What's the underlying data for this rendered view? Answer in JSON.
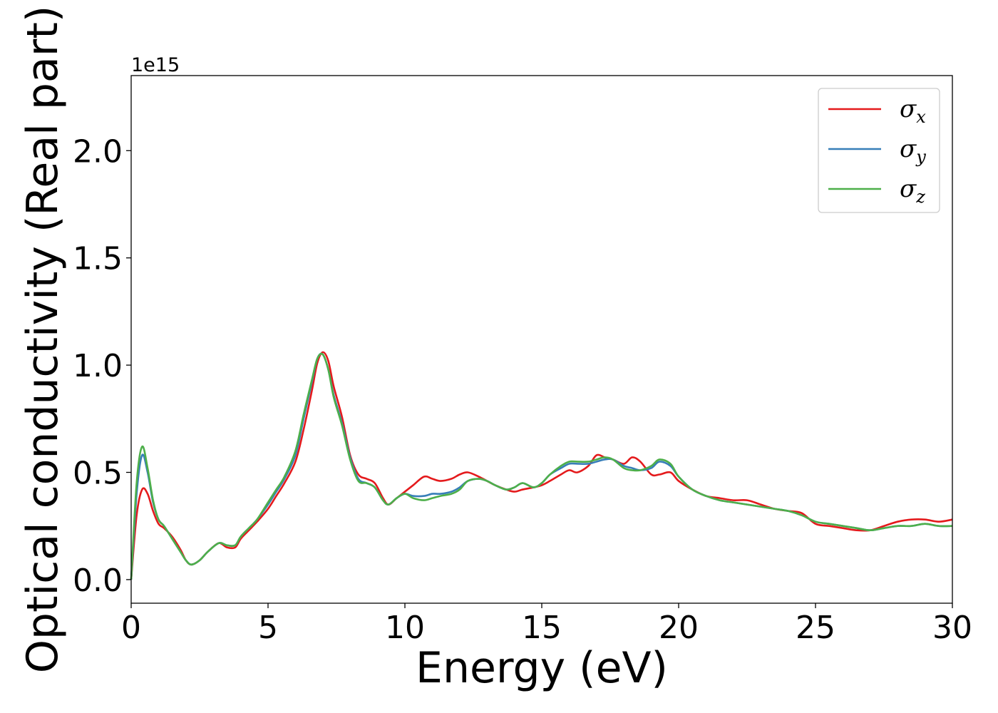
{
  "chart_data": {
    "type": "line",
    "xlabel": "Energy (eV)",
    "ylabel": "Optical conductivity (Real part)",
    "offset_text": "1e15",
    "xlim": [
      0,
      30
    ],
    "ylim": [
      -0.11,
      2.35
    ],
    "y_scale_factor": 1000000000000000.0,
    "xticks": [
      0,
      5,
      10,
      15,
      20,
      25,
      30
    ],
    "xtick_labels": [
      "0",
      "5",
      "10",
      "15",
      "20",
      "25",
      "30"
    ],
    "yticks": [
      0.0,
      0.5,
      1.0,
      1.5,
      2.0
    ],
    "ytick_labels": [
      "0.0",
      "0.5",
      "1.0",
      "1.5",
      "2.0"
    ],
    "grid": false,
    "legend_position": "top-right",
    "x": [
      0,
      0.2,
      0.4,
      0.6,
      0.8,
      1.0,
      1.2,
      1.5,
      1.8,
      2.0,
      2.2,
      2.5,
      2.8,
      3.2,
      3.5,
      3.8,
      4.0,
      4.3,
      4.6,
      5.0,
      5.3,
      5.6,
      6.0,
      6.3,
      6.6,
      6.8,
      7.0,
      7.2,
      7.4,
      7.7,
      8.0,
      8.3,
      8.6,
      8.9,
      9.2,
      9.4,
      9.7,
      10.0,
      10.3,
      10.7,
      11.0,
      11.3,
      11.7,
      12.0,
      12.3,
      12.7,
      13.0,
      13.3,
      13.7,
      14.0,
      14.3,
      14.7,
      15.0,
      15.3,
      15.7,
      16.0,
      16.3,
      16.7,
      17.0,
      17.3,
      17.6,
      18.0,
      18.3,
      18.6,
      19.0,
      19.3,
      19.7,
      20.0,
      20.5,
      21.0,
      21.5,
      22.0,
      22.5,
      23.0,
      23.5,
      24.0,
      24.5,
      25.0,
      25.5,
      26.0,
      26.5,
      27.0,
      27.5,
      28.0,
      28.5,
      29.0,
      29.5,
      30.0
    ],
    "series": [
      {
        "name": "σx",
        "color": "#e41a1c",
        "values": [
          0.0,
          0.3,
          0.42,
          0.4,
          0.32,
          0.26,
          0.24,
          0.2,
          0.14,
          0.09,
          0.07,
          0.09,
          0.13,
          0.17,
          0.15,
          0.15,
          0.19,
          0.23,
          0.27,
          0.33,
          0.39,
          0.45,
          0.55,
          0.7,
          0.88,
          1.01,
          1.06,
          1.02,
          0.9,
          0.76,
          0.58,
          0.49,
          0.47,
          0.45,
          0.38,
          0.35,
          0.38,
          0.41,
          0.44,
          0.48,
          0.47,
          0.46,
          0.47,
          0.49,
          0.5,
          0.48,
          0.46,
          0.44,
          0.42,
          0.41,
          0.42,
          0.43,
          0.44,
          0.46,
          0.49,
          0.51,
          0.5,
          0.53,
          0.58,
          0.57,
          0.56,
          0.54,
          0.57,
          0.55,
          0.49,
          0.49,
          0.5,
          0.46,
          0.42,
          0.39,
          0.38,
          0.37,
          0.37,
          0.35,
          0.33,
          0.32,
          0.31,
          0.26,
          0.25,
          0.24,
          0.23,
          0.23,
          0.25,
          0.27,
          0.28,
          0.28,
          0.27,
          0.28
        ]
      },
      {
        "name": "σy",
        "color": "#377eb8",
        "values": [
          0.0,
          0.4,
          0.58,
          0.5,
          0.36,
          0.28,
          0.25,
          0.19,
          0.13,
          0.09,
          0.07,
          0.09,
          0.13,
          0.17,
          0.16,
          0.16,
          0.2,
          0.24,
          0.28,
          0.35,
          0.41,
          0.47,
          0.58,
          0.75,
          0.92,
          1.03,
          1.05,
          0.98,
          0.86,
          0.73,
          0.57,
          0.47,
          0.45,
          0.43,
          0.37,
          0.35,
          0.38,
          0.4,
          0.39,
          0.39,
          0.4,
          0.4,
          0.41,
          0.43,
          0.46,
          0.47,
          0.46,
          0.44,
          0.42,
          0.43,
          0.45,
          0.43,
          0.45,
          0.49,
          0.52,
          0.54,
          0.54,
          0.54,
          0.55,
          0.56,
          0.56,
          0.53,
          0.52,
          0.51,
          0.52,
          0.55,
          0.53,
          0.48,
          0.42,
          0.39,
          0.37,
          0.36,
          0.35,
          0.34,
          0.33,
          0.32,
          0.3,
          0.27,
          0.26,
          0.25,
          0.24,
          0.23,
          0.24,
          0.25,
          0.25,
          0.26,
          0.25,
          0.25
        ]
      },
      {
        "name": "σz",
        "color": "#4daf4a",
        "values": [
          0.0,
          0.45,
          0.62,
          0.52,
          0.37,
          0.28,
          0.25,
          0.19,
          0.13,
          0.09,
          0.07,
          0.09,
          0.13,
          0.17,
          0.16,
          0.16,
          0.2,
          0.24,
          0.28,
          0.36,
          0.42,
          0.48,
          0.6,
          0.77,
          0.93,
          1.03,
          1.05,
          0.98,
          0.85,
          0.72,
          0.56,
          0.46,
          0.45,
          0.43,
          0.37,
          0.35,
          0.38,
          0.4,
          0.38,
          0.37,
          0.38,
          0.39,
          0.4,
          0.42,
          0.46,
          0.47,
          0.46,
          0.44,
          0.42,
          0.43,
          0.45,
          0.43,
          0.45,
          0.49,
          0.53,
          0.55,
          0.55,
          0.55,
          0.56,
          0.57,
          0.56,
          0.52,
          0.51,
          0.51,
          0.53,
          0.56,
          0.54,
          0.48,
          0.42,
          0.39,
          0.37,
          0.36,
          0.35,
          0.34,
          0.33,
          0.32,
          0.3,
          0.27,
          0.26,
          0.25,
          0.24,
          0.23,
          0.24,
          0.25,
          0.25,
          0.26,
          0.25,
          0.25
        ]
      }
    ]
  }
}
